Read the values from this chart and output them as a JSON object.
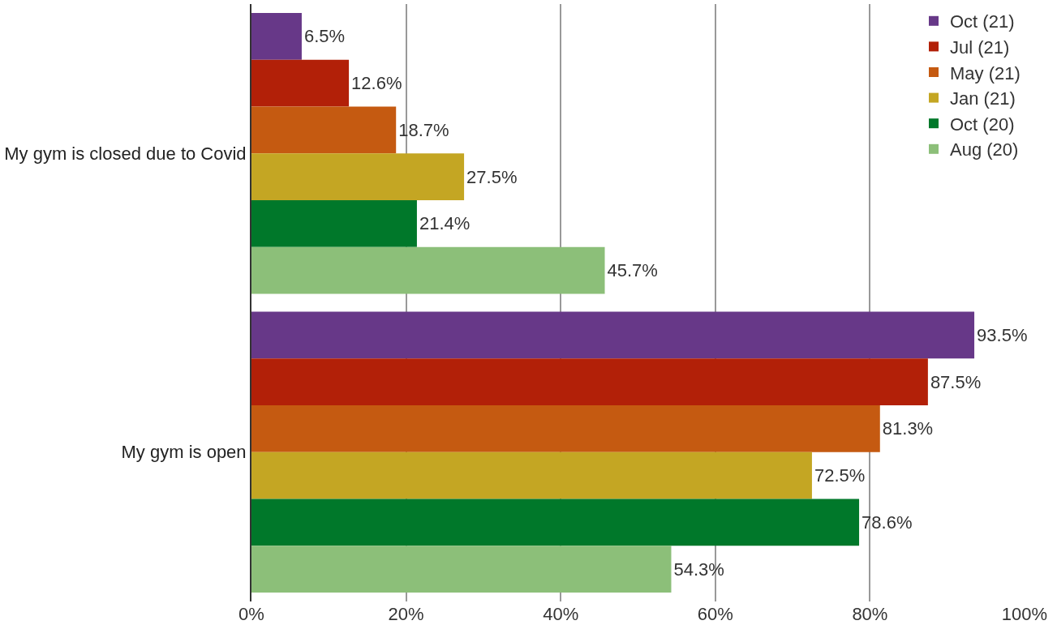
{
  "chart_data": {
    "type": "bar",
    "orientation": "horizontal",
    "categories": [
      "My gym is closed due to Covid",
      "My gym is open"
    ],
    "series": [
      {
        "name": "Oct (21)",
        "color": "#673888",
        "values": [
          6.5,
          93.5
        ],
        "value_labels": [
          "6.5%",
          "93.5%"
        ]
      },
      {
        "name": "Jul (21)",
        "color": "#b22008",
        "values": [
          12.6,
          87.5
        ],
        "value_labels": [
          "12.6%",
          "87.5%"
        ]
      },
      {
        "name": "May (21)",
        "color": "#c55a11",
        "values": [
          18.7,
          81.3
        ],
        "value_labels": [
          "18.7%",
          "81.3%"
        ]
      },
      {
        "name": "Jan (21)",
        "color": "#c4a623",
        "values": [
          27.5,
          72.5
        ],
        "value_labels": [
          "27.5%",
          "72.5%"
        ]
      },
      {
        "name": "Oct (20)",
        "color": "#00782a",
        "values": [
          21.4,
          78.6
        ],
        "value_labels": [
          "21.4%",
          "78.6%"
        ]
      },
      {
        "name": "Aug (20)",
        "color": "#8cbf79",
        "values": [
          45.7,
          54.3
        ],
        "value_labels": [
          "45.7%",
          "54.3%"
        ]
      }
    ],
    "xlim": [
      0,
      100
    ],
    "xticks": [
      {
        "value": 0,
        "label": "0%"
      },
      {
        "value": 20,
        "label": "20%"
      },
      {
        "value": 40,
        "label": "40%"
      },
      {
        "value": 60,
        "label": "60%"
      },
      {
        "value": 80,
        "label": "80%"
      },
      {
        "value": 100,
        "label": "100%"
      }
    ],
    "grid": "x",
    "legend": "top right"
  }
}
